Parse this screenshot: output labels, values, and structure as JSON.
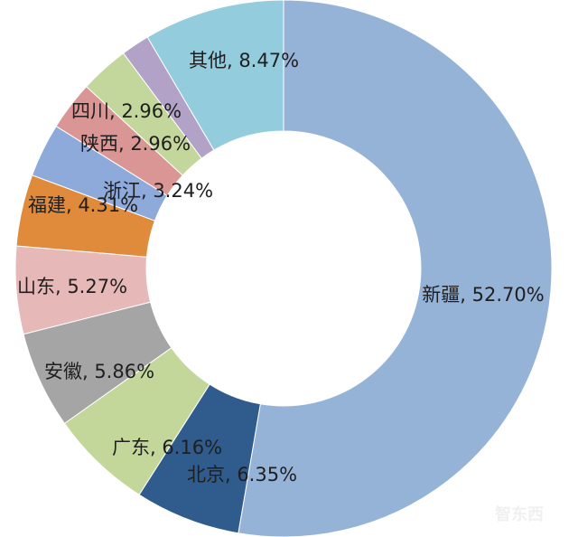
{
  "chart_data": {
    "type": "pie",
    "donut": true,
    "start": "top",
    "direction": "clockwise",
    "slices": [
      {
        "label": "新疆",
        "value": 52.7,
        "display": "新疆, 52.70%",
        "color": "#95b3d7"
      },
      {
        "label": "北京",
        "value": 6.35,
        "display": "北京, 6.35%",
        "color": "#2f5b8d"
      },
      {
        "label": "广东",
        "value": 6.16,
        "display": "广东, 6.16%",
        "color": "#c4d79b"
      },
      {
        "label": "安徽",
        "value": 5.86,
        "display": "安徽, 5.86%",
        "color": "#a5a5a5"
      },
      {
        "label": "山东",
        "value": 5.27,
        "display": "山东, 5.27%",
        "color": "#e6b9b8"
      },
      {
        "label": "福建",
        "value": 4.31,
        "display": "福建, 4.31%",
        "color": "#e08a3c"
      },
      {
        "label": "浙江",
        "value": 3.24,
        "display": "浙江, 3.24%",
        "color": "#8eaadb"
      },
      {
        "label": "陕西",
        "value": 2.96,
        "display": "陕西, 2.96%",
        "color": "#d99694"
      },
      {
        "label": "四川",
        "value": 2.96,
        "display": "四川, 2.96%",
        "color": "#c3d69b"
      },
      {
        "label": "",
        "value": 1.72,
        "display": "",
        "color": "#b3a2c7"
      },
      {
        "label": "其他",
        "value": 8.47,
        "display": "其他, 8.47%",
        "color": "#93cddd"
      }
    ]
  },
  "watermark": "智东西"
}
